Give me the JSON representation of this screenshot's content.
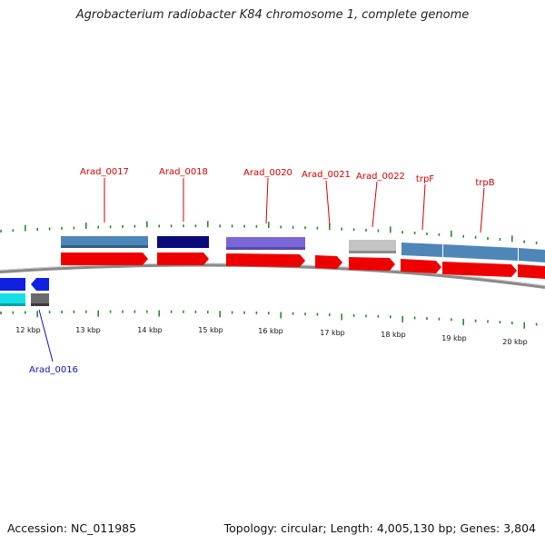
{
  "title": "Agrobacterium radiobacter K84 chromosome 1, complete genome",
  "footer": {
    "accession": "Accession: NC_011985",
    "summary": "Topology: circular; Length: 4,005,130 bp; Genes: 3,804"
  },
  "kbp_labels": [
    "12 kbp",
    "13 kbp",
    "14 kbp",
    "15 kbp",
    "16 kbp",
    "17 kbp",
    "18 kbp",
    "19 kbp",
    "20 kbp"
  ],
  "gene_labels_forward": [
    "Arad_0017",
    "Arad_0018",
    "Arad_0020",
    "Arad_0021",
    "Arad_0022",
    "trpF",
    "trpB"
  ],
  "gene_label_reverse": "Arad_0016",
  "colors": {
    "cds": "#ee0000",
    "steelblue": "#4f86b8",
    "navy": "#0a0a7a",
    "slateblue": "#7b68d8",
    "gray": "#c0c0c0",
    "blue": "#1020e0",
    "cyan": "#14e0e8",
    "dimgray": "#6a6a6a",
    "tick": "#2a8a2a",
    "backbone": "#808080"
  }
}
